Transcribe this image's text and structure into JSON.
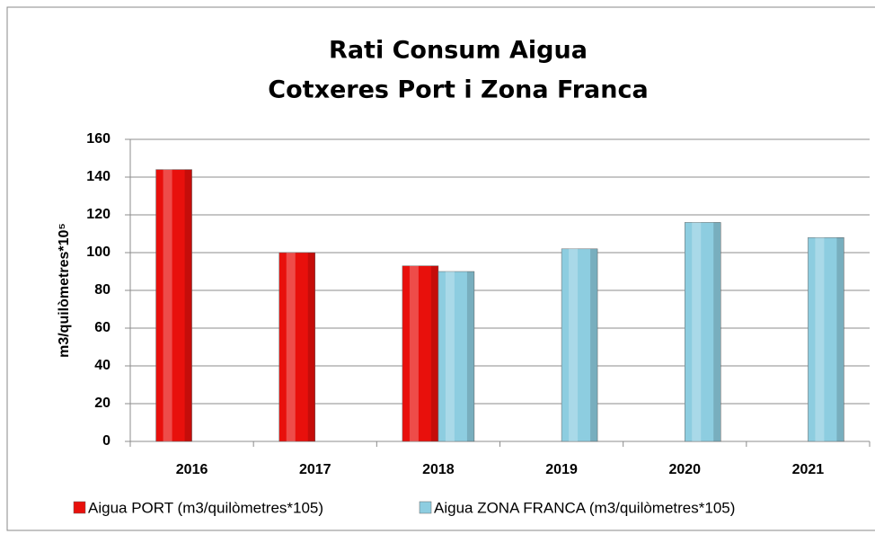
{
  "chart_data": {
    "type": "bar",
    "title": [
      "Rati Consum Aigua",
      "Cotxeres Port i Zona Franca"
    ],
    "y_label": "m3/quilòmetres*10⁵",
    "categories": [
      "2016",
      "2017",
      "2018",
      "2019",
      "2020",
      "2021"
    ],
    "series": [
      {
        "name": "Aigua PORT (m3/quilòmetres*105)",
        "color": "#e8100c",
        "values": [
          144,
          100,
          93,
          null,
          null,
          null
        ]
      },
      {
        "name": "Aigua ZONA FRANCA (m3/quilòmetres*105)",
        "color": "#8dcde0",
        "values": [
          null,
          null,
          90,
          102,
          116,
          108
        ]
      }
    ],
    "ylim": [
      0,
      160
    ],
    "yticks": [
      0,
      20,
      40,
      60,
      80,
      100,
      120,
      140,
      160
    ],
    "grid": true,
    "legend": "bottom"
  }
}
